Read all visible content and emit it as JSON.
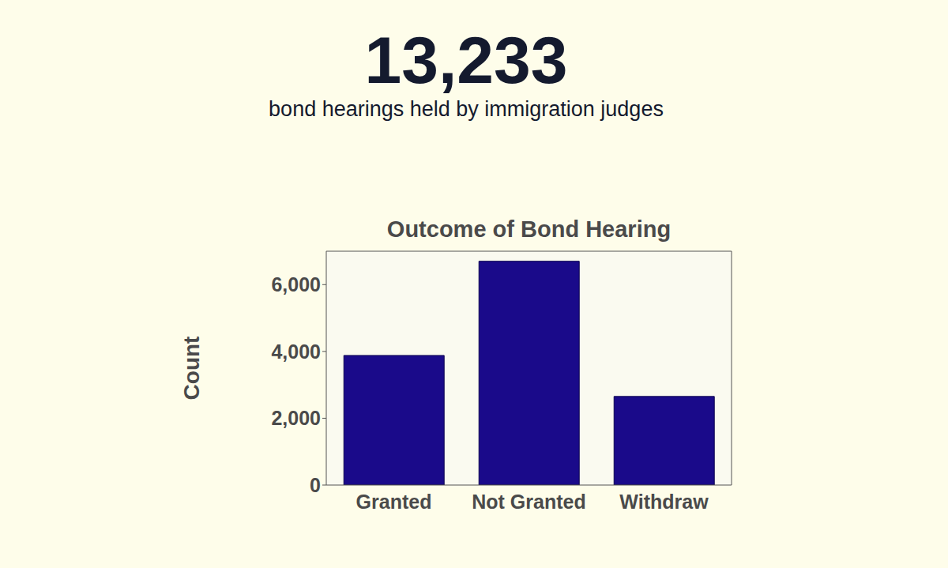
{
  "header": {
    "number": "13,233",
    "subtitle": "bond hearings held by immigration judges"
  },
  "chart_data": {
    "type": "bar",
    "title": "Outcome of Bond Hearing",
    "y_label": "Count",
    "categories": [
      "Granted",
      "Not Granted",
      "Withdraw"
    ],
    "values": [
      3880,
      6700,
      2653
    ],
    "color": "#1a0a8a",
    "ylim": [
      0,
      7000
    ],
    "yticks": [
      0,
      {
        "value": 2000,
        "label": "2,000"
      },
      {
        "value": 4000,
        "label": "4,000"
      },
      {
        "value": 6000,
        "label": "6,000"
      }
    ],
    "grid": false
  }
}
